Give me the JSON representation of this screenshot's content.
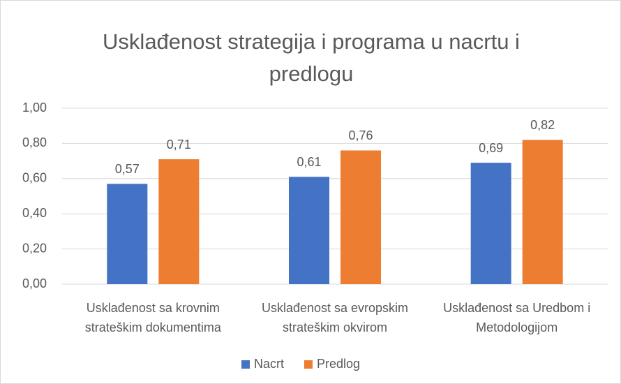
{
  "chart_data": {
    "type": "bar",
    "title": "Usklađenost strategija i programa u nacrtu i predlogu",
    "categories": [
      "Usklađenost sa krovnim strateškim dokumentima",
      "Usklađenost sa evropskim strateškim okvirom",
      "Usklađenost sa Uredbom i Metodologijom"
    ],
    "series": [
      {
        "name": "Nacrt",
        "color": "#4472c4",
        "values": [
          0.57,
          0.61,
          0.69
        ],
        "value_labels": [
          "0,57",
          "0,61",
          "0,69"
        ]
      },
      {
        "name": "Predlog",
        "color": "#ed7d31",
        "values": [
          0.71,
          0.76,
          0.82
        ],
        "value_labels": [
          "0,71",
          "0,76",
          "0,82"
        ]
      }
    ],
    "ylim": [
      0,
      1
    ],
    "yticks": [
      {
        "value": 0,
        "label": "0,00"
      },
      {
        "value": 0.2,
        "label": "0,20"
      },
      {
        "value": 0.4,
        "label": "0,40"
      },
      {
        "value": 0.6,
        "label": "0,60"
      },
      {
        "value": 0.8,
        "label": "0,80"
      },
      {
        "value": 1,
        "label": "1,00"
      }
    ],
    "grid": true,
    "legend": "bottom"
  }
}
